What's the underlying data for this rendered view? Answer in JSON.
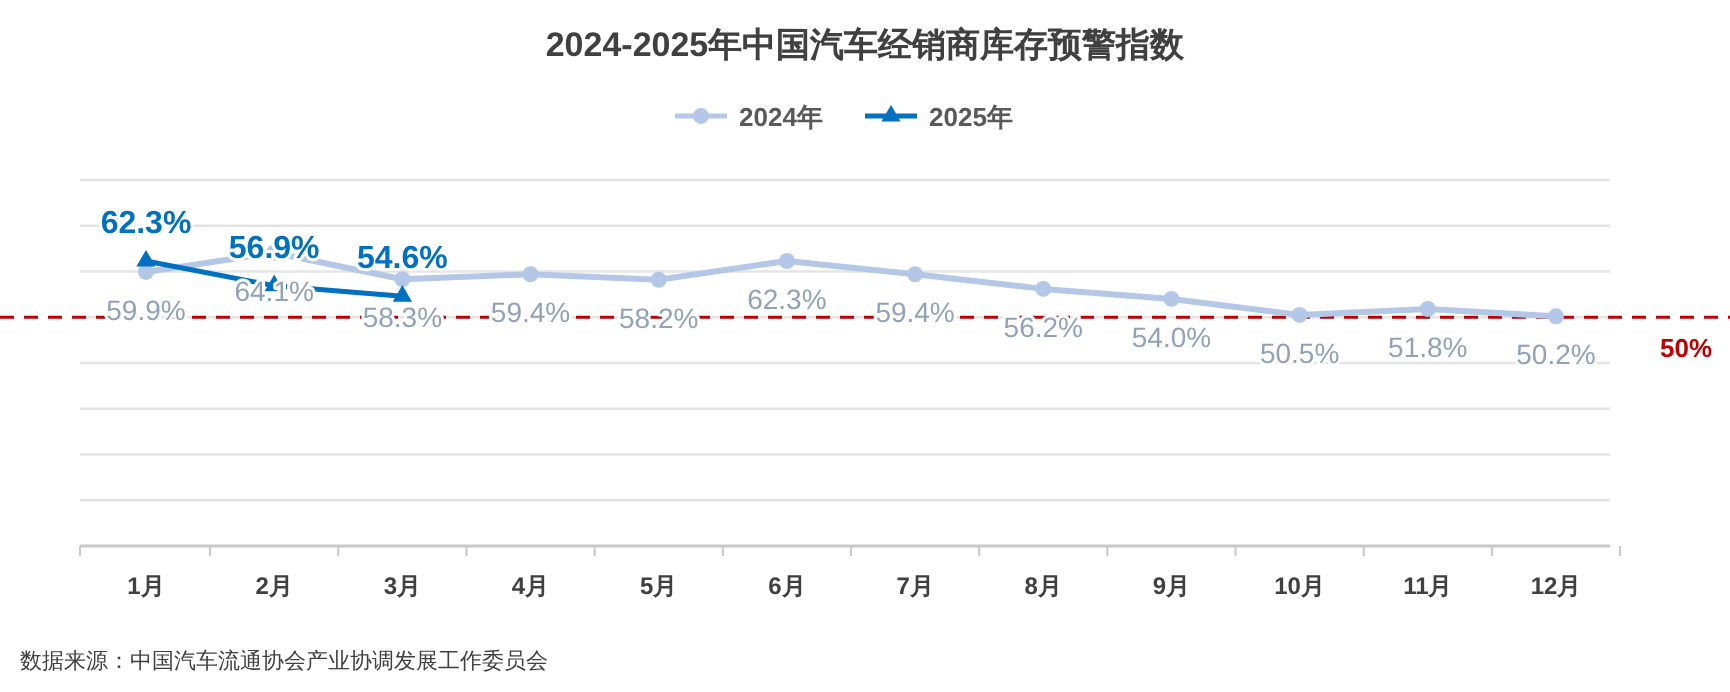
{
  "chart_data": {
    "type": "line",
    "title": "2024-2025年中国汽车经销商库存预警指数",
    "categories": [
      "1月",
      "2月",
      "3月",
      "4月",
      "5月",
      "6月",
      "7月",
      "8月",
      "9月",
      "10月",
      "11月",
      "12月"
    ],
    "series": [
      {
        "name": "2024年",
        "color": "#b4c7e7",
        "marker": "circle",
        "values": [
          59.9,
          64.1,
          58.3,
          59.4,
          58.2,
          62.3,
          59.4,
          56.2,
          54.0,
          50.5,
          51.8,
          50.2
        ],
        "value_labels": [
          "59.9%",
          "64.1%",
          "58.3%",
          "59.4%",
          "58.2%",
          "62.3%",
          "59.4%",
          "56.2%",
          "54.0%",
          "50.5%",
          "51.8%",
          "50.2%"
        ]
      },
      {
        "name": "2025年",
        "color": "#0070c0",
        "marker": "triangle",
        "values": [
          62.3,
          56.9,
          54.6,
          null,
          null,
          null,
          null,
          null,
          null,
          null,
          null,
          null
        ],
        "value_labels": [
          "62.3%",
          "56.9%",
          "54.6%",
          null,
          null,
          null,
          null,
          null,
          null,
          null,
          null,
          null
        ]
      }
    ],
    "ylim": [
      0,
      80
    ],
    "yticks": [
      {
        "value": 0,
        "label": null
      },
      {
        "value": 10,
        "label": null
      },
      {
        "value": 20,
        "label": null
      },
      {
        "value": 30,
        "label": null
      },
      {
        "value": 40,
        "label": null
      },
      {
        "value": 50,
        "label": null
      },
      {
        "value": 60,
        "label": null
      },
      {
        "value": 70,
        "label": null
      },
      {
        "value": 80,
        "label": null
      }
    ],
    "tick_labels": "x",
    "grid": "y",
    "legend": "top",
    "ref_lines": [
      {
        "axis": "y",
        "value": 50,
        "label": "50%",
        "color": "#c00000",
        "line_style": "dashed"
      }
    ],
    "annotations": [
      "数据来源：中国汽车流通协会产业协调发展工作委员会"
    ]
  }
}
